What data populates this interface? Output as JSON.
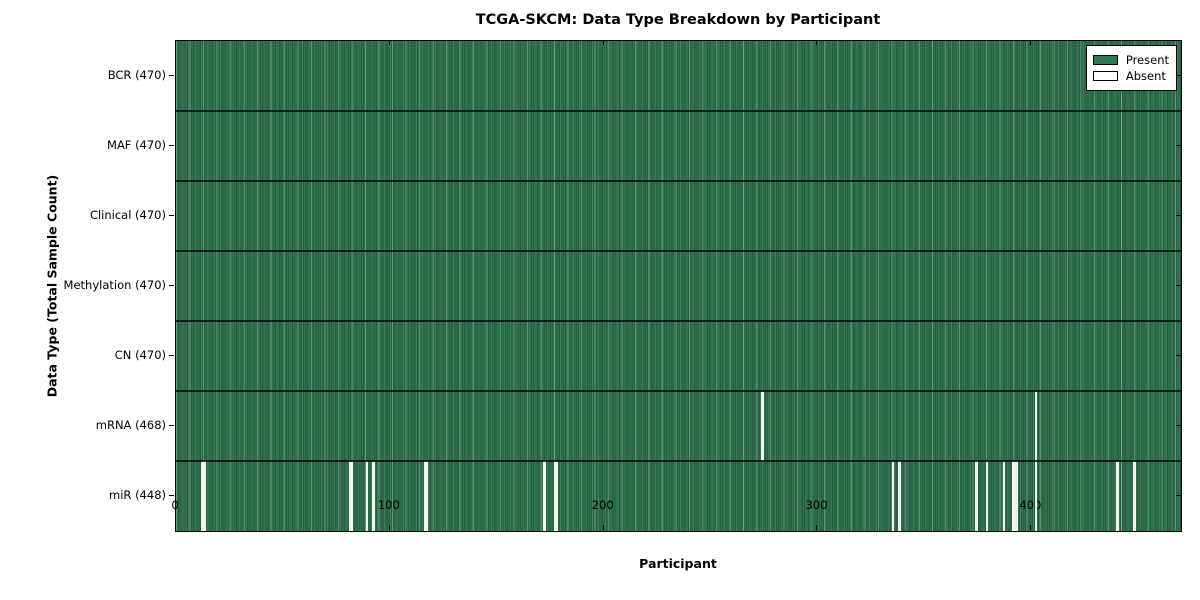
{
  "chart_data": {
    "type": "heatmap",
    "title": "TCGA-SKCM: Data Type Breakdown by Participant",
    "xlabel": "Participant",
    "ylabel": "Data Type (Total Sample Count)",
    "xlim": [
      0,
      470
    ],
    "x_ticks": [
      0,
      100,
      200,
      300,
      400
    ],
    "n_participants": 470,
    "grid": false,
    "legend_position": "upper right",
    "legend": {
      "entries": [
        {
          "label": "Present",
          "color": "#2f7a50"
        },
        {
          "label": "Absent",
          "color": "#ffffff"
        }
      ]
    },
    "rows": [
      {
        "label": "BCR (470)",
        "total": 470,
        "absent_participants": []
      },
      {
        "label": "MAF (470)",
        "total": 470,
        "absent_participants": []
      },
      {
        "label": "Clinical (470)",
        "total": 470,
        "absent_participants": []
      },
      {
        "label": "Methylation (470)",
        "total": 470,
        "absent_participants": []
      },
      {
        "label": "CN (470)",
        "total": 470,
        "absent_participants": []
      },
      {
        "label": "mRNA (468)",
        "total": 468,
        "absent_participants": [
          274,
          402
        ]
      },
      {
        "label": "miR (448)",
        "total": 448,
        "absent_participants": [
          12,
          13,
          81,
          82,
          89,
          92,
          116,
          117,
          172,
          177,
          178,
          335,
          338,
          374,
          379,
          387,
          391,
          392,
          393,
          402,
          440,
          448
        ]
      }
    ],
    "colors": {
      "present_fill": "#2c6c4a",
      "present_stripe_dark": "#24603f",
      "present_stripe_light": "#2f7450",
      "absent_fill": "#f4f4f1",
      "axis": "#000000",
      "background": "#ffffff"
    }
  }
}
